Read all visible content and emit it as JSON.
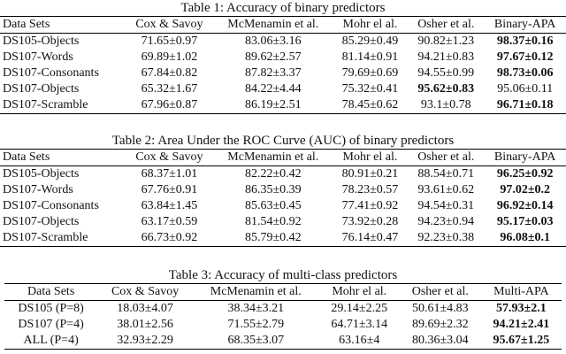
{
  "tables": [
    {
      "caption": "Table 1: Accuracy of binary predictors",
      "header": [
        "Data Sets",
        "Cox & Savoy",
        "McMenamin et al.",
        "Mohr el al.",
        "Osher et al.",
        "Binary-APA"
      ],
      "rows": [
        [
          "DS105-Objects",
          "71.65±0.97",
          "83.06±3.16",
          "85.29±0.49",
          "90.82±1.23",
          "98.37±0.16"
        ],
        [
          "DS107-Words",
          "69.89±1.02",
          "89.62±2.57",
          "81.14±0.91",
          "94.21±0.83",
          "97.67±0.12"
        ],
        [
          "DS107-Consonants",
          "67.84±0.82",
          "87.82±3.37",
          "79.69±0.69",
          "94.55±0.99",
          "98.73±0.06"
        ],
        [
          "DS107-Objects",
          "65.32±1.67",
          "84.22±4.44",
          "75.32±0.41",
          "95.62±0.83",
          "95.06±0.11"
        ],
        [
          "DS107-Scramble",
          "67.96±0.87",
          "86.19±2.51",
          "78.45±0.62",
          "93.1±0.78",
          "96.71±0.18"
        ]
      ],
      "bold_cells": [
        [
          0,
          5
        ],
        [
          1,
          5
        ],
        [
          2,
          5
        ],
        [
          3,
          4
        ],
        [
          4,
          5
        ]
      ]
    },
    {
      "caption": "Table 2: Area Under the ROC Curve (AUC) of binary predictors",
      "header": [
        "Data Sets",
        "Cox & Savoy",
        "McMenamin et al.",
        "Mohr el al.",
        "Osher et al.",
        "Binary-APA"
      ],
      "rows": [
        [
          "DS105-Objects",
          "68.37±1.01",
          "82.22±0.42",
          "80.91±0.21",
          "88.54±0.71",
          "96.25±0.92"
        ],
        [
          "DS107-Words",
          "67.76±0.91",
          "86.35±0.39",
          "78.23±0.57",
          "93.61±0.62",
          "97.02±0.2"
        ],
        [
          "DS107-Consonants",
          "63.84±1.45",
          "85.63±0.45",
          "77.41±0.92",
          "94.54±0.31",
          "96.92±0.14"
        ],
        [
          "DS107-Objects",
          "63.17±0.59",
          "81.54±0.92",
          "73.92±0.28",
          "94.23±0.94",
          "95.17±0.03"
        ],
        [
          "DS107-Scramble",
          "66.73±0.92",
          "85.79±0.42",
          "76.14±0.47",
          "92.23±0.38",
          "96.08±0.1"
        ]
      ],
      "bold_cells": [
        [
          0,
          5
        ],
        [
          1,
          5
        ],
        [
          2,
          5
        ],
        [
          3,
          5
        ],
        [
          4,
          5
        ]
      ]
    },
    {
      "caption": "Table 3: Accuracy of multi-class predictors",
      "header": [
        "Data Sets",
        "Cox & Savoy",
        "McMenamin et al.",
        "Mohr el al.",
        "Osher et al.",
        "Multi-APA"
      ],
      "rows": [
        [
          "DS105 (P=8)",
          "18.03±4.07",
          "38.34±3.21",
          "29.14±2.25",
          "50.61±4.83",
          "57.93±2.1"
        ],
        [
          "DS107 (P=4)",
          "38.01±2.56",
          "71.55±2.79",
          "64.71±3.14",
          "89.69±2.32",
          "94.21±2.41"
        ],
        [
          "ALL (P=4)",
          "32.93±2.29",
          "68.35±3.07",
          "63.16±4",
          "80.36±3.04",
          "95.67±1.25"
        ]
      ],
      "bold_cells": [
        [
          0,
          5
        ],
        [
          1,
          5
        ],
        [
          2,
          5
        ]
      ]
    }
  ]
}
